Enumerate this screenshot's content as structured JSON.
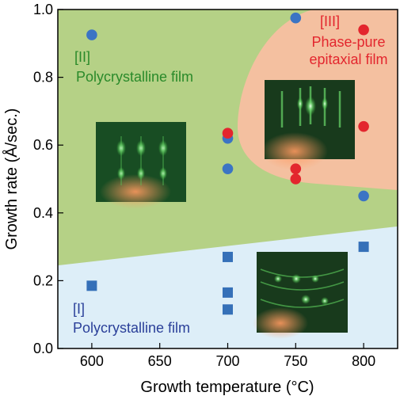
{
  "chart_data": {
    "type": "scatter",
    "xlabel": "Growth temperature (°C)",
    "ylabel": "Growth rate (Å/sec.)",
    "xlim": [
      575,
      825
    ],
    "ylim": [
      0,
      1.0
    ],
    "xticks": [
      600,
      650,
      700,
      750,
      800
    ],
    "yticks": [
      0.0,
      0.2,
      0.4,
      0.6,
      0.8,
      1.0
    ],
    "colors": {
      "green_region": "#b5d186",
      "blue_region": "#ddeef8",
      "peach_region": "#f4c0a0",
      "circle_blue": "#3b74c4",
      "square_blue": "#3570b8",
      "red_circle": "#e3262e",
      "label_green": "#2a8a2a",
      "label_blue": "#2a3f99",
      "label_red": "#e3262e"
    },
    "regions": [
      {
        "id": "I",
        "numeral": "[I]",
        "label": "Polycrystalline film"
      },
      {
        "id": "II",
        "numeral": "[II]",
        "label": "Polycrystalline film"
      },
      {
        "id": "III",
        "numeral": "[III]",
        "label_line1": "Phase-pure",
        "label_line2": "epitaxial film"
      }
    ],
    "series": [
      {
        "marker": "square",
        "points": [
          [
            600,
            0.185
          ],
          [
            700,
            0.27
          ],
          [
            700,
            0.165
          ],
          [
            700,
            0.115
          ],
          [
            800,
            0.3
          ]
        ]
      },
      {
        "marker": "circle-blue",
        "points": [
          [
            600,
            0.925
          ],
          [
            700,
            0.62
          ],
          [
            700,
            0.53
          ],
          [
            750,
            0.975
          ],
          [
            800,
            0.45
          ]
        ]
      },
      {
        "marker": "circle-red",
        "points": [
          [
            700,
            0.635
          ],
          [
            750,
            0.53
          ],
          [
            750,
            0.5
          ],
          [
            800,
            0.94
          ],
          [
            800,
            0.655
          ]
        ]
      }
    ],
    "insets": [
      {
        "id": "rheed-region-ii"
      },
      {
        "id": "rheed-region-iii"
      },
      {
        "id": "rheed-region-i"
      }
    ]
  }
}
